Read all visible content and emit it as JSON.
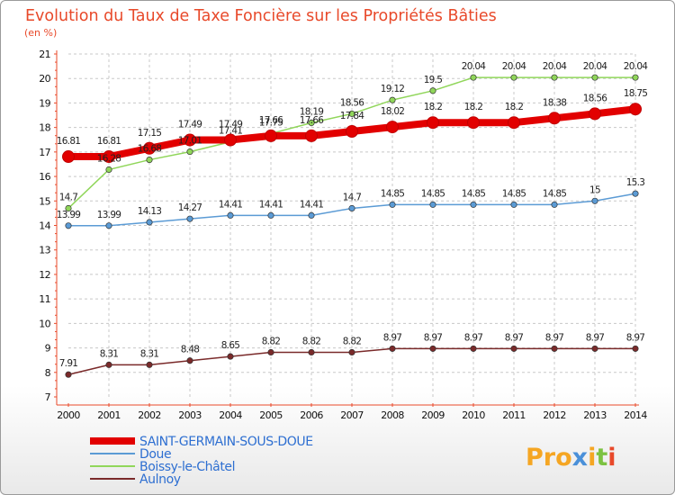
{
  "chart_data": {
    "type": "line",
    "title": "Evolution du Taux de Taxe Foncière sur les Propriétés Bâties",
    "ylabel": "(en %)",
    "xlabel": "",
    "ylim": [
      7,
      21
    ],
    "yticks": [
      "7",
      "8",
      "9",
      "10",
      "11",
      "12",
      "13",
      "14",
      "15",
      "16",
      "17",
      "18",
      "19",
      "20",
      "21"
    ],
    "x": [
      "2000",
      "2001",
      "2002",
      "2003",
      "2004",
      "2005",
      "2006",
      "2007",
      "2008",
      "2009",
      "2010",
      "2011",
      "2012",
      "2013",
      "2014"
    ],
    "series": [
      {
        "name": "SAINT-GERMAIN-SOUS-DOUE",
        "color": "#e20000",
        "width": 8,
        "values": [
          16.81,
          16.81,
          17.15,
          17.49,
          17.49,
          17.66,
          17.66,
          17.84,
          18.02,
          18.2,
          18.2,
          18.2,
          18.38,
          18.56,
          18.75
        ],
        "labels": [
          "16.81",
          "16.81",
          "17.15",
          "17.49",
          "17.49",
          "17.66",
          "17.66",
          "17.84",
          "18.02",
          "18.2",
          "18.2",
          "18.2",
          "18.38",
          "18.56",
          "18.75"
        ]
      },
      {
        "name": "Doue",
        "color": "#5b9bd5",
        "width": 1.5,
        "values": [
          13.99,
          13.99,
          14.13,
          14.27,
          14.41,
          14.41,
          14.41,
          14.7,
          14.85,
          14.85,
          14.85,
          14.85,
          14.85,
          15,
          15.3
        ],
        "labels": [
          "13.99",
          "13.99",
          "14.13",
          "14.27",
          "14.41",
          "14.41",
          "14.41",
          "14.7",
          "14.85",
          "14.85",
          "14.85",
          "14.85",
          "14.85",
          "15",
          "15.3"
        ]
      },
      {
        "name": "Boissy-le-Châtel",
        "color": "#90d65a",
        "width": 1.5,
        "values": [
          14.7,
          16.28,
          16.68,
          17.01,
          17.41,
          17.75,
          18.19,
          18.56,
          19.12,
          19.5,
          20.04,
          20.04,
          20.04,
          20.04,
          20.04
        ],
        "labels": [
          "14.7",
          "16.28",
          "16.68",
          "17.01",
          "17.41",
          "17.75",
          "18.19",
          "18.56",
          "19.12",
          "19.5",
          "20.04",
          "20.04",
          "20.04",
          "20.04",
          "20.04"
        ]
      },
      {
        "name": "Aulnoy",
        "color": "#7a2a2a",
        "width": 1.5,
        "values": [
          7.91,
          8.31,
          8.31,
          8.48,
          8.65,
          8.82,
          8.82,
          8.82,
          8.97,
          8.97,
          8.97,
          8.97,
          8.97,
          8.97,
          8.97
        ],
        "labels": [
          "7.91",
          "8.31",
          "8.31",
          "8.48",
          "8.65",
          "8.82",
          "8.82",
          "8.82",
          "8.97",
          "8.97",
          "8.97",
          "8.97",
          "8.97",
          "8.97",
          "8.97"
        ]
      }
    ]
  },
  "logo": {
    "p1": "Pro",
    "p2": "x",
    "p3": "i",
    "p4": "t",
    "p5": "i"
  }
}
